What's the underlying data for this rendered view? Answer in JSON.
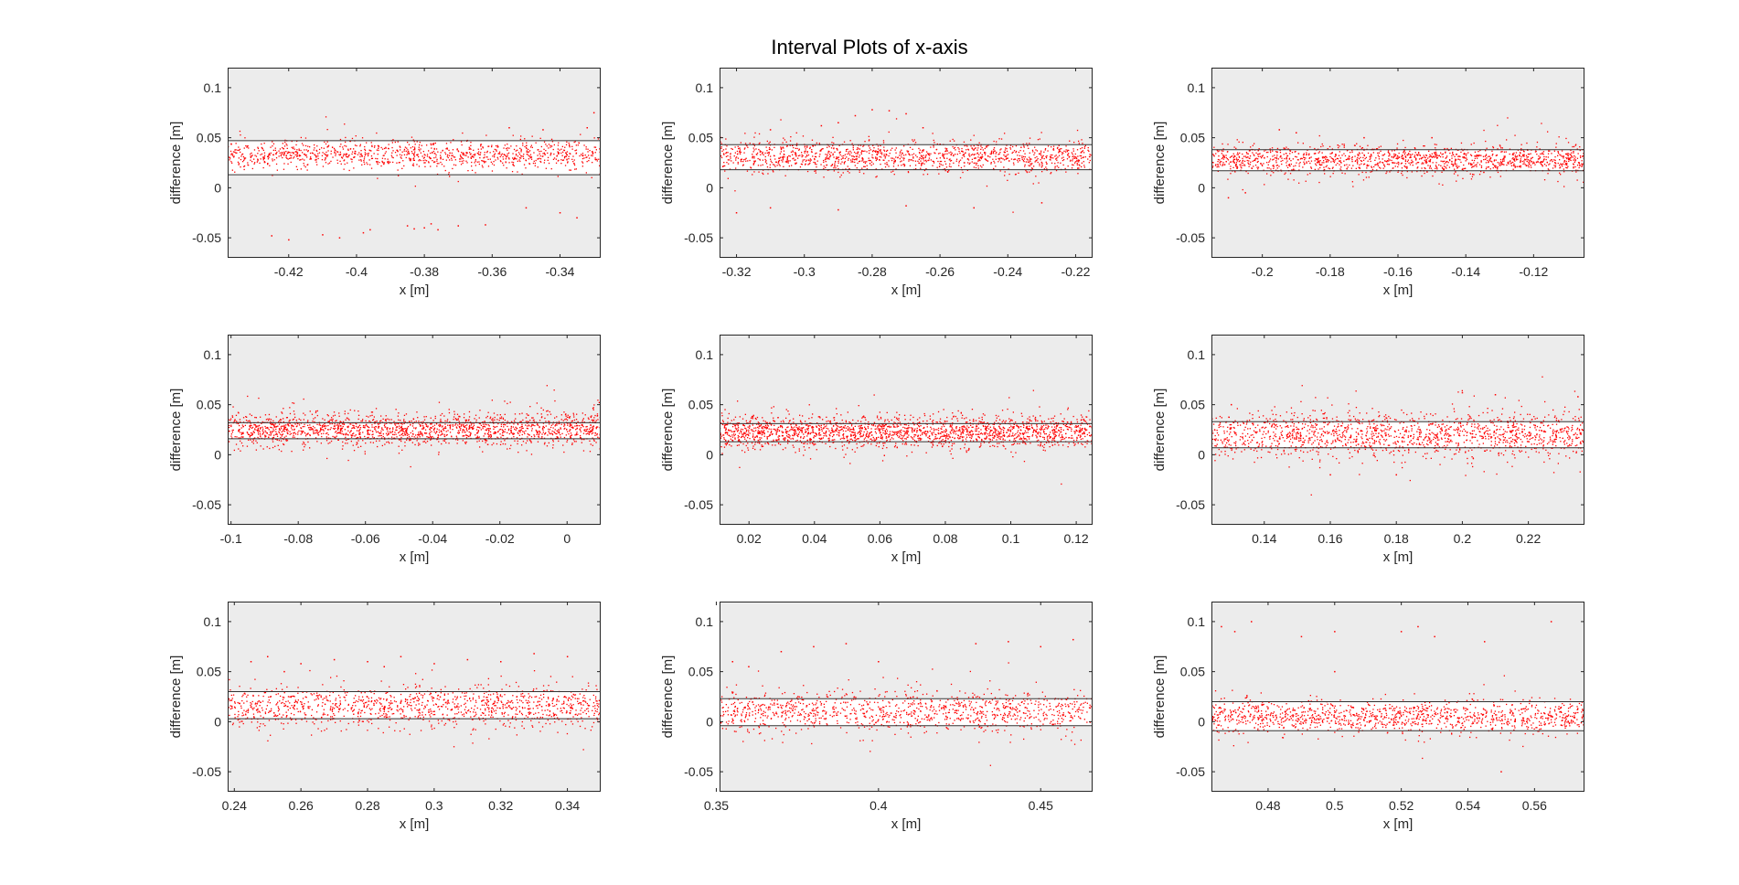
{
  "figure": {
    "title": "Interval Plots of x-axis"
  },
  "colors": {
    "axes_bg": "#ececec",
    "band": "#ffffff",
    "points": "#ff0000",
    "bounds": "#333333",
    "axis": "#262626"
  },
  "chart_data": [
    {
      "type": "scatter",
      "xlabel": "x [m]",
      "ylabel": "difference [m]",
      "xlim": [
        -0.438,
        -0.328
      ],
      "ylim": [
        -0.07,
        0.12
      ],
      "xticks": [
        -0.42,
        -0.4,
        -0.38,
        -0.36,
        -0.34
      ],
      "xtick_labels": [
        "-0.42",
        "-0.4",
        "-0.38",
        "-0.36",
        "-0.34"
      ],
      "yticks": [
        -0.05,
        0,
        0.05,
        0.1
      ],
      "ytick_labels": [
        "-0.05",
        "0",
        "0.05",
        "0.1"
      ],
      "bounds": {
        "upper": 0.047,
        "lower": 0.013
      },
      "points": {
        "n": 1100,
        "center": 0.033,
        "spread": 0.007,
        "extra": [
          [
            -0.425,
            -0.048
          ],
          [
            -0.42,
            -0.052
          ],
          [
            -0.41,
            -0.047
          ],
          [
            -0.405,
            -0.05
          ],
          [
            -0.398,
            -0.045
          ],
          [
            -0.396,
            -0.042
          ],
          [
            -0.385,
            -0.038
          ],
          [
            -0.383,
            -0.041
          ],
          [
            -0.38,
            -0.04
          ],
          [
            -0.378,
            -0.036
          ],
          [
            -0.376,
            -0.042
          ],
          [
            -0.37,
            -0.038
          ],
          [
            -0.362,
            -0.037
          ],
          [
            -0.35,
            -0.02
          ],
          [
            -0.34,
            -0.025
          ],
          [
            -0.335,
            -0.03
          ],
          [
            -0.33,
            0.075
          ],
          [
            -0.332,
            0.06
          ],
          [
            -0.345,
            0.058
          ],
          [
            -0.355,
            0.06
          ]
        ]
      }
    },
    {
      "type": "scatter",
      "xlabel": "x [m]",
      "ylabel": "difference [m]",
      "xlim": [
        -0.325,
        -0.215
      ],
      "ylim": [
        -0.07,
        0.12
      ],
      "xticks": [
        -0.32,
        -0.3,
        -0.28,
        -0.26,
        -0.24,
        -0.22
      ],
      "xtick_labels": [
        "-0.32",
        "-0.3",
        "-0.28",
        "-0.26",
        "-0.24",
        "-0.22"
      ],
      "yticks": [
        -0.05,
        0,
        0.05,
        0.1
      ],
      "ytick_labels": [
        "-0.05",
        "0",
        "0.05",
        "0.1"
      ],
      "bounds": {
        "upper": 0.043,
        "lower": 0.018
      },
      "points": {
        "n": 1300,
        "center": 0.031,
        "spread": 0.008,
        "extra": [
          [
            -0.29,
            0.065
          ],
          [
            -0.285,
            0.072
          ],
          [
            -0.28,
            0.078
          ],
          [
            -0.275,
            0.077
          ],
          [
            -0.27,
            0.074
          ],
          [
            -0.265,
            0.06
          ],
          [
            -0.295,
            0.062
          ],
          [
            -0.31,
            0.058
          ],
          [
            -0.32,
            -0.025
          ],
          [
            -0.31,
            -0.02
          ],
          [
            -0.29,
            -0.022
          ],
          [
            -0.27,
            -0.018
          ],
          [
            -0.25,
            -0.02
          ],
          [
            -0.23,
            -0.015
          ]
        ]
      }
    },
    {
      "type": "scatter",
      "xlabel": "x [m]",
      "ylabel": "difference [m]",
      "xlim": [
        -0.215,
        -0.105
      ],
      "ylim": [
        -0.07,
        0.12
      ],
      "xticks": [
        -0.2,
        -0.18,
        -0.16,
        -0.14,
        -0.12
      ],
      "xtick_labels": [
        "-0.2",
        "-0.18",
        "-0.16",
        "-0.14",
        "-0.12"
      ],
      "yticks": [
        -0.05,
        0,
        0.05,
        0.1
      ],
      "ytick_labels": [
        "-0.05",
        "0",
        "0.05",
        "0.1"
      ],
      "bounds": {
        "upper": 0.038,
        "lower": 0.017
      },
      "points": {
        "n": 1400,
        "center": 0.028,
        "spread": 0.007,
        "extra": [
          [
            -0.21,
            -0.01
          ],
          [
            -0.205,
            -0.005
          ],
          [
            -0.19,
            0.055
          ],
          [
            -0.195,
            0.058
          ],
          [
            -0.17,
            0.05
          ],
          [
            -0.15,
            0.05
          ]
        ]
      }
    },
    {
      "type": "scatter",
      "xlabel": "x [m]",
      "ylabel": "difference [m]",
      "xlim": [
        -0.101,
        0.01
      ],
      "ylim": [
        -0.07,
        0.12
      ],
      "xticks": [
        -0.1,
        -0.08,
        -0.06,
        -0.04,
        -0.02,
        0
      ],
      "xtick_labels": [
        "-0.1",
        "-0.08",
        "-0.06",
        "-0.04",
        "-0.02",
        "0"
      ],
      "yticks": [
        -0.05,
        0,
        0.05,
        0.1
      ],
      "ytick_labels": [
        "-0.05",
        "0",
        "0.05",
        "0.1"
      ],
      "bounds": {
        "upper": 0.032,
        "lower": 0.016
      },
      "points": {
        "n": 1800,
        "center": 0.025,
        "spread": 0.008,
        "extra": []
      }
    },
    {
      "type": "scatter",
      "xlabel": "x [m]",
      "ylabel": "difference [m]",
      "xlim": [
        0.011,
        0.125
      ],
      "ylim": [
        -0.07,
        0.12
      ],
      "xticks": [
        0.02,
        0.04,
        0.06,
        0.08,
        0.1,
        0.12
      ],
      "xtick_labels": [
        "0.02",
        "0.04",
        "0.06",
        "0.08",
        "0.1",
        "0.12"
      ],
      "yticks": [
        -0.05,
        0,
        0.05,
        0.1
      ],
      "ytick_labels": [
        "-0.05",
        "0",
        "0.05",
        "0.1"
      ],
      "bounds": {
        "upper": 0.031,
        "lower": 0.013
      },
      "points": {
        "n": 2000,
        "center": 0.023,
        "spread": 0.008,
        "extra": []
      }
    },
    {
      "type": "scatter",
      "xlabel": "x [m]",
      "ylabel": "difference [m]",
      "xlim": [
        0.124,
        0.237
      ],
      "ylim": [
        -0.07,
        0.12
      ],
      "xticks": [
        0.14,
        0.16,
        0.18,
        0.2,
        0.22
      ],
      "xtick_labels": [
        "0.14",
        "0.16",
        "0.18",
        "0.2",
        "0.22"
      ],
      "yticks": [
        -0.05,
        0,
        0.05,
        0.1
      ],
      "ytick_labels": [
        "-0.05",
        "0",
        "0.05",
        "0.1"
      ],
      "bounds": {
        "upper": 0.033,
        "lower": 0.007
      },
      "points": {
        "n": 1500,
        "center": 0.02,
        "spread": 0.011,
        "extra": [
          [
            0.2,
            0.062
          ],
          [
            0.21,
            0.06
          ],
          [
            0.235,
            0.058
          ],
          [
            0.13,
            0.05
          ],
          [
            0.16,
            -0.02
          ],
          [
            0.18,
            -0.02
          ]
        ]
      }
    },
    {
      "type": "scatter",
      "xlabel": "x [m]",
      "ylabel": "difference [m]",
      "xlim": [
        0.238,
        0.35
      ],
      "ylim": [
        -0.07,
        0.12
      ],
      "xticks": [
        0.24,
        0.26,
        0.28,
        0.3,
        0.32,
        0.34
      ],
      "xtick_labels": [
        "0.24",
        "0.26",
        "0.28",
        "0.3",
        "0.32",
        "0.34"
      ],
      "yticks": [
        -0.05,
        0,
        0.05,
        0.1
      ],
      "ytick_labels": [
        "-0.05",
        "0",
        "0.05",
        "0.1"
      ],
      "bounds": {
        "upper": 0.03,
        "lower": 0.003
      },
      "points": {
        "n": 1200,
        "center": 0.015,
        "spread": 0.01,
        "extra": [
          [
            0.245,
            0.06
          ],
          [
            0.25,
            0.065
          ],
          [
            0.26,
            0.058
          ],
          [
            0.27,
            0.062
          ],
          [
            0.28,
            0.06
          ],
          [
            0.29,
            0.065
          ],
          [
            0.3,
            0.058
          ],
          [
            0.31,
            0.062
          ],
          [
            0.32,
            0.06
          ],
          [
            0.33,
            0.068
          ],
          [
            0.34,
            0.065
          ],
          [
            0.255,
            0.05
          ],
          [
            0.285,
            0.055
          ]
        ]
      }
    },
    {
      "type": "scatter",
      "xlabel": "x [m]",
      "ylabel": "difference [m]",
      "xlim": [
        0.351,
        0.466
      ],
      "ylim": [
        -0.07,
        0.12
      ],
      "xticks": [
        0.35,
        0.4,
        0.45
      ],
      "xtick_labels": [
        "0.35",
        "0.4",
        "0.45"
      ],
      "yticks": [
        -0.05,
        0,
        0.05,
        0.1
      ],
      "ytick_labels": [
        "-0.05",
        "0",
        "0.05",
        "0.1"
      ],
      "bounds": {
        "upper": 0.023,
        "lower": -0.004
      },
      "points": {
        "n": 1100,
        "center": 0.01,
        "spread": 0.01,
        "extra": [
          [
            0.355,
            0.06
          ],
          [
            0.36,
            0.055
          ],
          [
            0.38,
            0.075
          ],
          [
            0.39,
            0.078
          ],
          [
            0.4,
            0.06
          ],
          [
            0.43,
            0.078
          ],
          [
            0.44,
            0.08
          ],
          [
            0.45,
            0.075
          ],
          [
            0.46,
            0.082
          ],
          [
            0.37,
            0.07
          ]
        ]
      }
    },
    {
      "type": "scatter",
      "xlabel": "x [m]",
      "ylabel": "difference [m]",
      "xlim": [
        0.463,
        0.575
      ],
      "ylim": [
        -0.07,
        0.12
      ],
      "xticks": [
        0.48,
        0.5,
        0.52,
        0.54,
        0.56
      ],
      "xtick_labels": [
        "0.48",
        "0.5",
        "0.52",
        "0.54",
        "0.56"
      ],
      "yticks": [
        -0.05,
        0,
        0.05,
        0.1
      ],
      "ytick_labels": [
        "-0.05",
        "0",
        "0.05",
        "0.1"
      ],
      "bounds": {
        "upper": 0.02,
        "lower": -0.009
      },
      "points": {
        "n": 1200,
        "center": 0.005,
        "spread": 0.008,
        "extra": [
          [
            0.466,
            0.095
          ],
          [
            0.47,
            0.09
          ],
          [
            0.475,
            0.1
          ],
          [
            0.49,
            0.085
          ],
          [
            0.5,
            0.09
          ],
          [
            0.52,
            0.09
          ],
          [
            0.525,
            0.095
          ],
          [
            0.53,
            0.085
          ],
          [
            0.545,
            0.08
          ],
          [
            0.565,
            0.1
          ],
          [
            0.5,
            0.05
          ],
          [
            0.55,
            -0.05
          ]
        ]
      }
    }
  ]
}
